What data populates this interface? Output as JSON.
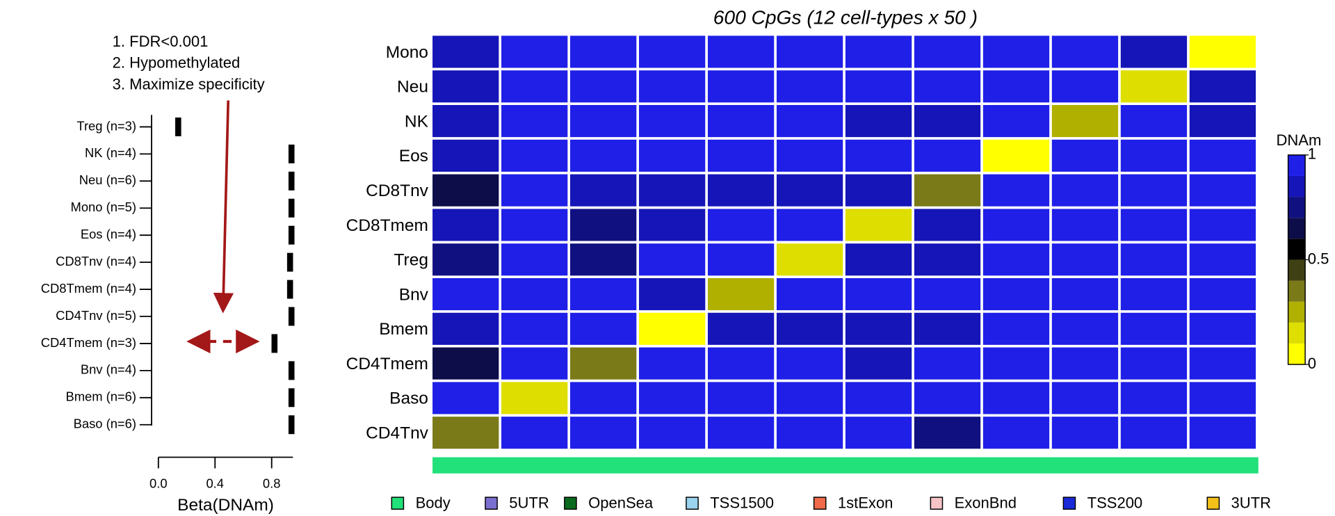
{
  "chart_data": [
    {
      "type": "strip",
      "annotations": [
        "1. FDR<0.001",
        "2. Hypomethylated",
        "3. Maximize specificity"
      ],
      "categories": [
        "Treg (n=3)",
        "NK (n=4)",
        "Neu (n=6)",
        "Mono (n=5)",
        "Eos (n=4)",
        "CD8Tnv (n=4)",
        "CD8Tmem (n=4)",
        "CD4Tnv (n=5)",
        "CD4Tmem (n=3)",
        "Bnv (n=4)",
        "Bmem (n=6)",
        "Baso (n=6)"
      ],
      "values": [
        0.14,
        0.94,
        0.94,
        0.94,
        0.94,
        0.93,
        0.93,
        0.94,
        0.82,
        0.94,
        0.94,
        0.94
      ],
      "color": "#000000",
      "xlabel": "Beta(DNAm)",
      "xlim": [
        0,
        0.95
      ],
      "xticks": [
        {
          "value": 0,
          "label": "0.0"
        },
        0.4,
        0.8
      ]
    },
    {
      "type": "heatmap",
      "title": "600 CpGs (12 cell-types x 50 )",
      "rows": [
        "Mono",
        "Neu",
        "NK",
        "Eos",
        "CD8Tnv",
        "CD8Tmem",
        "Treg",
        "Bnv",
        "Bmem",
        "CD4Tmem",
        "Baso",
        "CD4Tnv"
      ],
      "columns": [
        null,
        null,
        null,
        null,
        null,
        null,
        null,
        null,
        null,
        null,
        null,
        null
      ],
      "values": [
        [
          0.85,
          0.95,
          0.95,
          0.95,
          0.95,
          0.95,
          0.95,
          0.95,
          0.95,
          0.95,
          0.85,
          0.05
        ],
        [
          0.88,
          0.95,
          0.95,
          0.95,
          0.95,
          0.95,
          0.95,
          0.95,
          0.95,
          0.95,
          0.15,
          0.85
        ],
        [
          0.85,
          0.95,
          0.95,
          0.95,
          0.95,
          0.9,
          0.82,
          0.85,
          0.95,
          0.2,
          0.95,
          0.88
        ],
        [
          0.88,
          0.9,
          0.95,
          0.95,
          0.95,
          0.95,
          0.95,
          0.95,
          0.05,
          0.95,
          0.95,
          0.95
        ],
        [
          0.65,
          0.9,
          0.85,
          0.85,
          0.85,
          0.85,
          0.82,
          0.3,
          0.95,
          0.95,
          0.95,
          0.92
        ],
        [
          0.8,
          0.95,
          0.72,
          0.88,
          0.95,
          0.95,
          0.15,
          0.8,
          0.95,
          0.95,
          0.95,
          0.95
        ],
        [
          0.75,
          0.95,
          0.78,
          0.95,
          0.95,
          0.15,
          0.82,
          0.85,
          0.93,
          0.95,
          0.95,
          0.95
        ],
        [
          0.9,
          0.95,
          0.95,
          0.88,
          0.2,
          0.95,
          0.95,
          0.95,
          0.95,
          0.95,
          0.95,
          0.95
        ],
        [
          0.88,
          0.95,
          0.95,
          0.05,
          0.8,
          0.88,
          0.82,
          0.88,
          0.95,
          0.95,
          0.95,
          0.95
        ],
        [
          0.6,
          0.95,
          0.35,
          0.95,
          0.93,
          0.95,
          0.85,
          0.9,
          0.95,
          0.95,
          0.95,
          0.95
        ],
        [
          0.9,
          0.1,
          0.95,
          0.95,
          0.95,
          0.95,
          0.95,
          0.95,
          0.95,
          0.95,
          0.95,
          0.95
        ],
        [
          0.35,
          0.95,
          0.95,
          0.95,
          0.95,
          0.95,
          0.95,
          0.7,
          0.92,
          0.95,
          0.95,
          0.95
        ]
      ],
      "colorbar": {
        "label": "DNAm",
        "lim": [
          0,
          1
        ],
        "ticks": [
          1,
          0.5,
          0
        ],
        "colors": [
          "#ffff00",
          "#dede00",
          "#b0b000",
          "#7a7a18",
          "#404015",
          "#000000",
          "#0d0d4a",
          "#101080",
          "#1515b8",
          "#1f1fe8"
        ]
      },
      "annotation_legend": [
        {
          "name": "Body",
          "color": "#22e07a"
        },
        {
          "name": "5UTR",
          "color": "#7b6fd0"
        },
        {
          "name": "OpenSea",
          "color": "#0a6a1e"
        },
        {
          "name": "TSS1500",
          "color": "#9ad4ee"
        },
        {
          "name": "1stExon",
          "color": "#f06a4a"
        },
        {
          "name": "ExonBnd",
          "color": "#f7c4c8"
        },
        {
          "name": "TSS200",
          "color": "#1a2ad8"
        },
        {
          "name": "3UTR",
          "color": "#f2c21a"
        }
      ]
    }
  ]
}
